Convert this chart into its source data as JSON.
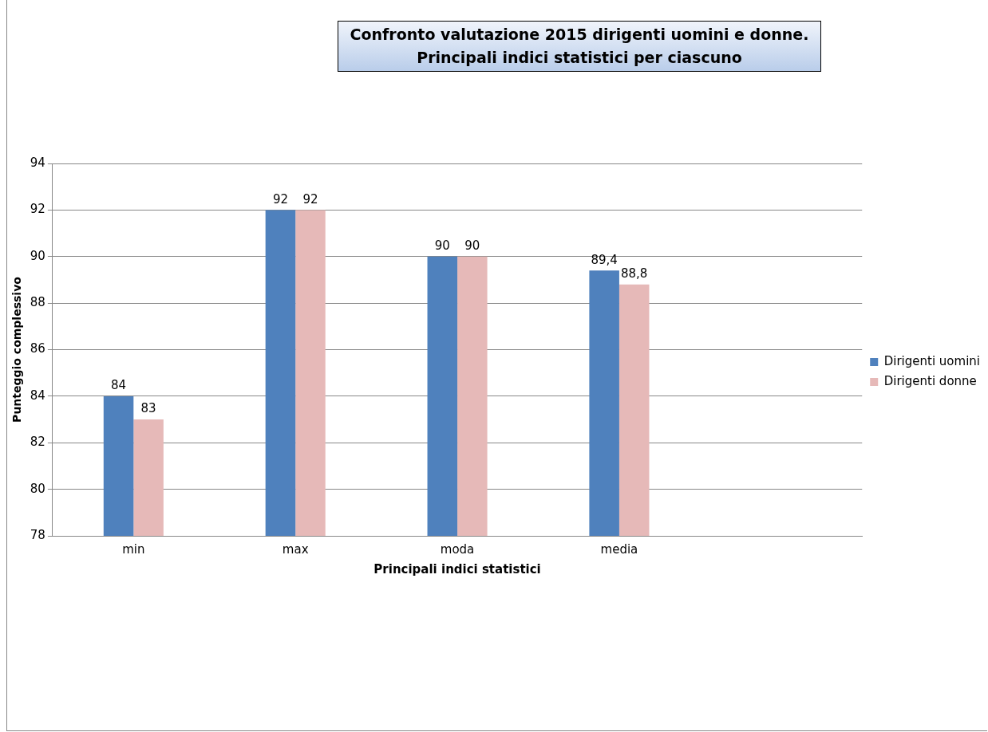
{
  "chart_data": {
    "type": "bar",
    "title": "Confronto valutazione 2015 dirigenti uomini e donne.\nPrincipali indici statistici per ciascuno",
    "xlabel": "Principali indici statistici",
    "ylabel": "Punteggio complessivo",
    "categories": [
      "min",
      "max",
      "moda",
      "media",
      null
    ],
    "series": [
      {
        "name": "Dirigenti uomini",
        "color": "#4f81bd",
        "values": [
          84,
          92,
          90,
          89.4,
          null
        ],
        "value_labels": [
          "84",
          "92",
          "90",
          "89,4",
          null
        ]
      },
      {
        "name": "Dirigenti donne",
        "color": "#e6b9b8",
        "values": [
          83,
          92,
          90,
          88.8,
          null
        ],
        "value_labels": [
          "83",
          "92",
          "90",
          "88,8",
          null
        ]
      }
    ],
    "ylim": [
      78,
      94
    ],
    "yticks": [
      78,
      80,
      82,
      84,
      86,
      88,
      90,
      92,
      94
    ],
    "grid": "y",
    "legend": "right"
  }
}
